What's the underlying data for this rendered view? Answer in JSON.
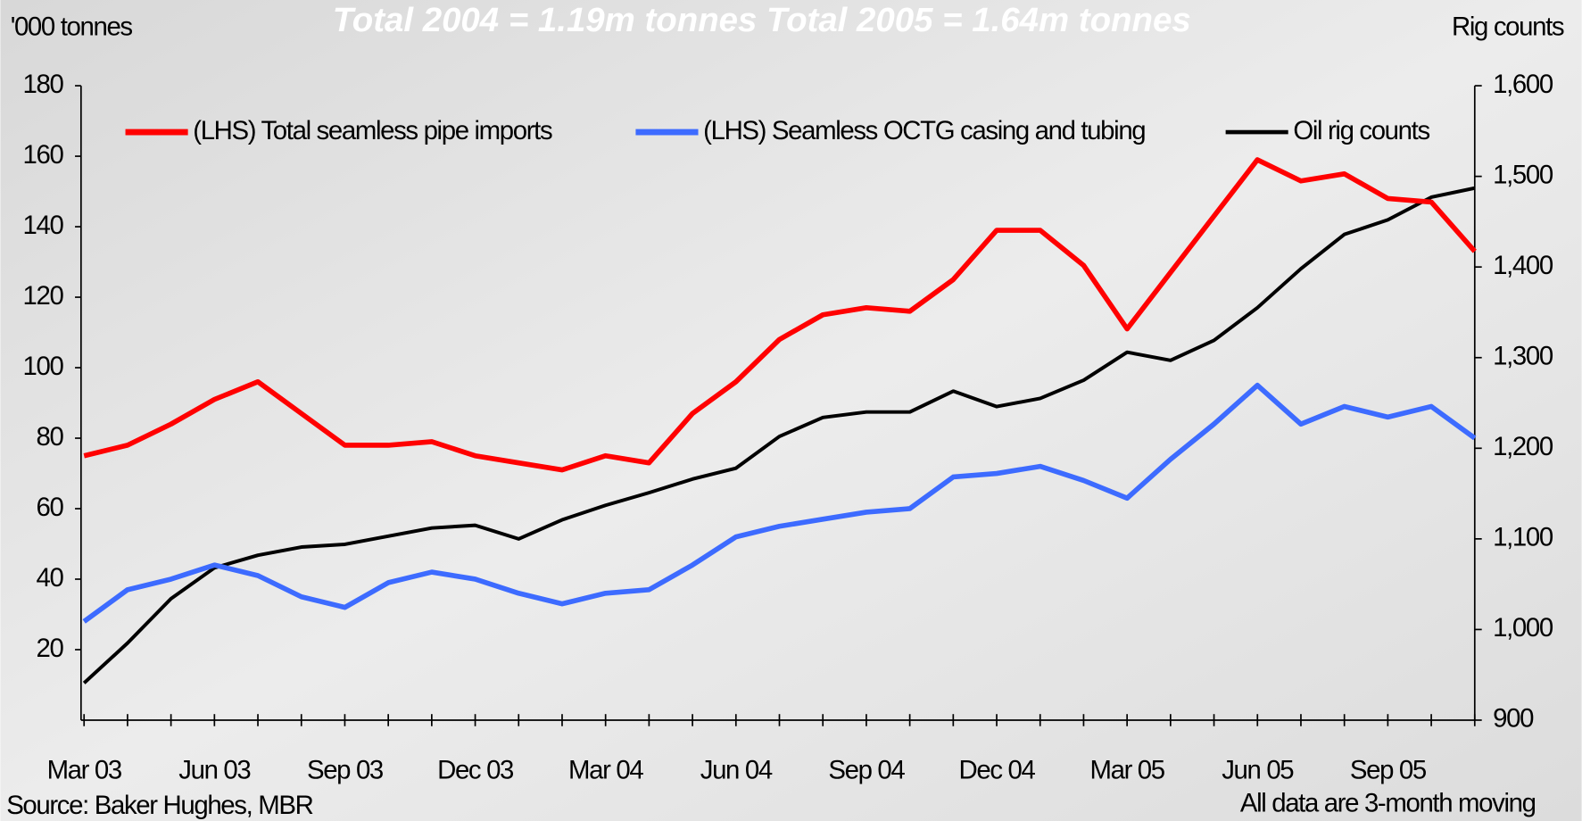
{
  "chart_data": {
    "type": "line",
    "title": "Total 2004 = 1.19m tonnes  Total 2005 = 1.64m tonnes",
    "y_label": "'000 tonnes",
    "y2_label": "Rig counts",
    "source": "Source: Baker Hughes, MBR",
    "note": "All data are 3-month moving",
    "categories": [
      "Mar 03",
      null,
      null,
      "Jun 03",
      null,
      null,
      "Sep 03",
      null,
      null,
      "Dec 03",
      null,
      null,
      "Mar 04",
      null,
      null,
      "Jun 04",
      null,
      null,
      "Sep 04",
      null,
      null,
      "Dec 04",
      null,
      null,
      "Mar 05",
      null,
      null,
      "Jun 05",
      null,
      null,
      "Sep 05",
      null,
      null
    ],
    "ylim": [
      0,
      180
    ],
    "yticks": [
      20,
      40,
      60,
      80,
      100,
      120,
      140,
      160,
      180
    ],
    "y2lim": [
      900,
      1600
    ],
    "y2ticks": [
      900,
      {
        "value": 1000,
        "label": "1,000"
      },
      {
        "value": 1100,
        "label": "1,100"
      },
      {
        "value": 1200,
        "label": "1,200"
      },
      {
        "value": 1300,
        "label": "1,300"
      },
      {
        "value": 1400,
        "label": "1,400"
      },
      {
        "value": 1500,
        "label": "1,500"
      },
      {
        "value": 1600,
        "label": "1,600"
      }
    ],
    "grid": false,
    "series": [
      {
        "name": "(LHS) Total seamless pipe imports",
        "color": "#ff0000",
        "values": [
          75,
          78,
          84,
          91,
          96,
          87,
          78,
          78,
          79,
          75,
          73,
          71,
          75,
          73,
          87,
          96,
          108,
          115,
          117,
          116,
          125,
          139,
          139,
          129,
          111,
          127,
          143,
          159,
          153,
          155,
          148,
          147,
          133
        ]
      },
      {
        "name": "(LHS) Seamless OCTG casing and tubing",
        "color": "#3d6bff",
        "values": [
          28,
          37,
          40,
          44,
          41,
          35,
          32,
          39,
          42,
          40,
          36,
          33,
          36,
          37,
          44,
          52,
          55,
          57,
          59,
          60,
          69,
          70,
          72,
          68,
          63,
          74,
          84,
          95,
          84,
          89,
          86,
          89,
          80
        ]
      },
      {
        "name": "Oil rig counts",
        "color": "#000000",
        "axis": "y2",
        "values": [
          941,
          985,
          1034,
          1068,
          1082,
          1091,
          1094,
          1103,
          1112,
          1115,
          1100,
          1121,
          1137,
          1151,
          1166,
          1178,
          1213,
          1234,
          1240,
          1240,
          1263,
          1246,
          1255,
          1275,
          1306,
          1297,
          1319,
          1355,
          1398,
          1436,
          1452,
          1477,
          1487
        ]
      }
    ]
  }
}
